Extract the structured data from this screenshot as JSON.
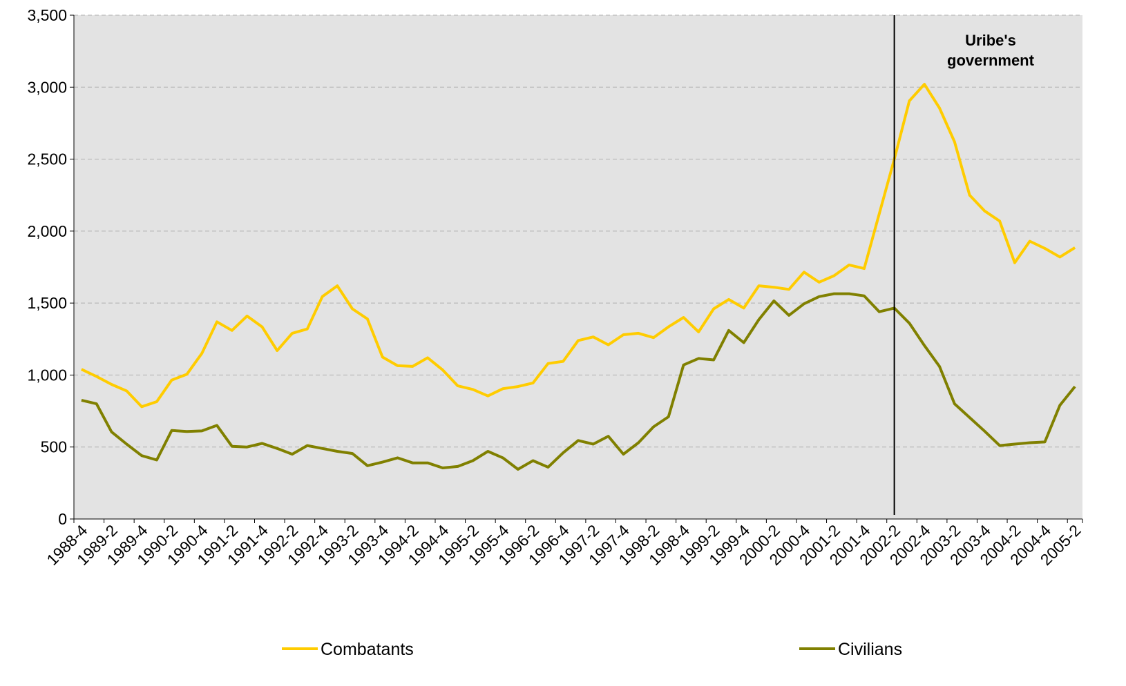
{
  "chart_data": {
    "type": "line",
    "categories": [
      "1988-4",
      null,
      "1989-2",
      null,
      "1989-4",
      null,
      "1990-2",
      null,
      "1990-4",
      null,
      "1991-2",
      null,
      "1991-4",
      null,
      "1992-2",
      null,
      "1992-4",
      null,
      "1993-2",
      null,
      "1993-4",
      null,
      "1994-2",
      null,
      "1994-4",
      null,
      "1995-2",
      null,
      "1995-4",
      null,
      "1996-2",
      null,
      "1996-4",
      null,
      "1997-2",
      null,
      "1997-4",
      null,
      "1998-2",
      null,
      "1998-4",
      null,
      "1999-2",
      null,
      "1999-4",
      null,
      "2000-2",
      null,
      "2000-4",
      null,
      "2001-2",
      null,
      "2001-4",
      null,
      "2002-2",
      null,
      "2002-4",
      null,
      "2003-2",
      null,
      "2003-4",
      null,
      "2004-2",
      null,
      "2004-4",
      null,
      "2005-2"
    ],
    "series": [
      {
        "name": "Combatants",
        "color": "#ffcc00",
        "values": [
          1040,
          990,
          935,
          890,
          780,
          815,
          965,
          1005,
          1150,
          1370,
          1310,
          1410,
          1335,
          1170,
          1290,
          1320,
          1545,
          1620,
          1460,
          1390,
          1125,
          1065,
          1060,
          1120,
          1035,
          925,
          900,
          855,
          905,
          920,
          945,
          1080,
          1095,
          1240,
          1265,
          1210,
          1280,
          1290,
          1260,
          1335,
          1400,
          1300,
          1460,
          1525,
          1465,
          1620,
          1610,
          1595,
          1715,
          1645,
          1690,
          1765,
          1740,
          2120,
          2500,
          2905,
          3020,
          2855,
          2620,
          2250,
          2140,
          2070,
          1780,
          1930,
          1880,
          1820,
          1885
        ]
      },
      {
        "name": "Civilians",
        "color": "#808000",
        "values": [
          825,
          800,
          605,
          520,
          440,
          410,
          615,
          608,
          612,
          650,
          505,
          500,
          525,
          490,
          450,
          510,
          490,
          470,
          455,
          370,
          395,
          425,
          390,
          390,
          355,
          365,
          405,
          470,
          425,
          345,
          405,
          360,
          460,
          545,
          520,
          575,
          450,
          530,
          640,
          710,
          1070,
          1115,
          1105,
          1310,
          1225,
          1385,
          1515,
          1415,
          1495,
          1545,
          1565,
          1565,
          1550,
          1440,
          1465,
          1360,
          1205,
          1060,
          800,
          705,
          610,
          510,
          520,
          530,
          535,
          790,
          920
        ]
      }
    ],
    "ylim": [
      0,
      3500
    ],
    "yticks": [
      0,
      500,
      {
        "value": 1000,
        "label": "1,000"
      },
      {
        "value": 1500,
        "label": "1,500"
      },
      {
        "value": 2000,
        "label": "2,000"
      },
      {
        "value": 2500,
        "label": "2,500"
      },
      {
        "value": 3000,
        "label": "3,000"
      },
      {
        "value": 3500,
        "label": "3,500"
      }
    ],
    "grid": true,
    "legend": "bottom",
    "annotation": {
      "lines": [
        "Uribe's",
        "government"
      ],
      "at": "2002-2"
    }
  }
}
